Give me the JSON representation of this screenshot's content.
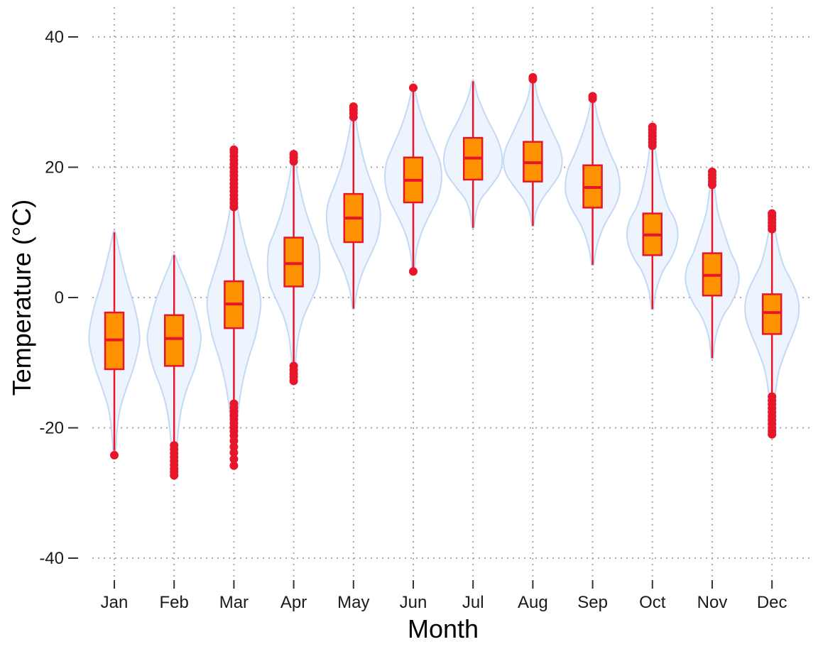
{
  "chart_data": {
    "type": "violin+box",
    "title": "",
    "xlabel": "Month",
    "ylabel": "Temperature (°C)",
    "ylim": [
      -43,
      44
    ],
    "yticks": [
      -40,
      -20,
      0,
      20,
      40
    ],
    "ytick_labels": [
      "-40",
      "-20",
      "0",
      "20",
      "40"
    ],
    "grid": "dotted, major x and y",
    "legend": "none",
    "colors": {
      "violin_fill": "#eef4fd",
      "violin_stroke": "#c3d9f5",
      "box_fill": "#ff9200",
      "box_stroke": "#e8162a",
      "whisker": "#e8162a",
      "outlier": "#e8162a",
      "grid": "#aaaaaa",
      "tick": "#333333"
    },
    "categories": [
      "Jan",
      "Feb",
      "Mar",
      "Apr",
      "May",
      "Jun",
      "Jul",
      "Aug",
      "Sep",
      "Oct",
      "Nov",
      "Dec"
    ],
    "boxes": [
      {
        "month": "Jan",
        "whisker_low": -23.5,
        "q1": -11,
        "median": -6.5,
        "q3": -2.3,
        "whisker_high": 10,
        "outliers": [
          -24.2
        ]
      },
      {
        "month": "Feb",
        "whisker_low": -22.5,
        "q1": -10.5,
        "median": -6.3,
        "q3": -2.7,
        "whisker_high": 6.5,
        "outliers": [
          -22.7,
          -23.3,
          -23.9,
          -24.5,
          -25.1,
          -25.7,
          -26.3,
          -26.8,
          -27.3
        ]
      },
      {
        "month": "Mar",
        "whisker_low": -16,
        "q1": -4.7,
        "median": -1,
        "q3": 2.5,
        "whisker_high": 13.5,
        "outliers": [
          -16.3,
          -16.9,
          -17.5,
          -18.1,
          -18.7,
          -19.3,
          -19.9,
          -20.5,
          -21.2,
          -22,
          -22.9,
          -23.8,
          -24.8,
          -25.8,
          13.9,
          14.5,
          15.1,
          15.7,
          16.3,
          16.9,
          17.5,
          18.1,
          18.7,
          19.3,
          19.9,
          20.5,
          21.1,
          21.7,
          22.3,
          22.7
        ]
      },
      {
        "month": "Apr",
        "whisker_low": -10,
        "q1": 1.7,
        "median": 5.2,
        "q3": 9.2,
        "whisker_high": 20.5,
        "outliers": [
          -10.5,
          -11.1,
          -11.7,
          -12.2,
          -12.8,
          20.9,
          21.5,
          22.0
        ]
      },
      {
        "month": "May",
        "whisker_low": -1.7,
        "q1": 8.5,
        "median": 12.2,
        "q3": 15.9,
        "whisker_high": 27.3,
        "outliers": [
          27.7,
          28.3,
          28.8,
          29.3
        ]
      },
      {
        "month": "Jun",
        "whisker_low": 4.5,
        "q1": 14.6,
        "median": 18,
        "q3": 21.5,
        "whisker_high": 31.8,
        "outliers": [
          4.0,
          32.2
        ]
      },
      {
        "month": "Jul",
        "whisker_low": 10.7,
        "q1": 18.1,
        "median": 21.4,
        "q3": 24.5,
        "whisker_high": 33.2,
        "outliers": []
      },
      {
        "month": "Aug",
        "whisker_low": 11,
        "q1": 17.8,
        "median": 20.7,
        "q3": 23.9,
        "whisker_high": 33.3,
        "outliers": [
          33.5,
          33.8
        ]
      },
      {
        "month": "Sep",
        "whisker_low": 5,
        "q1": 13.8,
        "median": 16.9,
        "q3": 20.3,
        "whisker_high": 30.3,
        "outliers": [
          30.5,
          30.9
        ]
      },
      {
        "month": "Oct",
        "whisker_low": -1.8,
        "q1": 6.5,
        "median": 9.6,
        "q3": 12.9,
        "whisker_high": 23,
        "outliers": [
          23.3,
          23.8,
          24.3,
          24.8,
          25.3,
          25.8,
          26.2
        ]
      },
      {
        "month": "Nov",
        "whisker_low": -9.3,
        "q1": 0.3,
        "median": 3.4,
        "q3": 6.8,
        "whisker_high": 17,
        "outliers": [
          17.3,
          17.8,
          18.3,
          18.8,
          19.3
        ]
      },
      {
        "month": "Dec",
        "whisker_low": -14.8,
        "q1": -5.6,
        "median": -2.3,
        "q3": 0.5,
        "whisker_high": 10.2,
        "outliers": [
          -15.2,
          -15.8,
          -16.4,
          -17,
          -17.6,
          -18.2,
          -18.8,
          -19.4,
          -20,
          -20.5,
          -21,
          10.5,
          11,
          11.5,
          12,
          12.5,
          12.9
        ]
      }
    ],
    "violins": [
      {
        "month": "Jan",
        "y_low": -24.2,
        "y_high": 10,
        "profile": [
          [
            -24.2,
            0.03
          ],
          [
            -20,
            0.1
          ],
          [
            -17,
            0.2
          ],
          [
            -14,
            0.4
          ],
          [
            -11,
            0.63
          ],
          [
            -8,
            0.8
          ],
          [
            -6.5,
            0.85
          ],
          [
            -4,
            0.8
          ],
          [
            -1,
            0.65
          ],
          [
            2,
            0.45
          ],
          [
            5,
            0.28
          ],
          [
            7.5,
            0.15
          ],
          [
            10,
            0.03
          ]
        ]
      },
      {
        "month": "Feb",
        "y_low": -27.3,
        "y_high": 6.5,
        "profile": [
          [
            -27.3,
            0.03
          ],
          [
            -24,
            0.07
          ],
          [
            -20,
            0.15
          ],
          [
            -17,
            0.25
          ],
          [
            -14,
            0.43
          ],
          [
            -11,
            0.68
          ],
          [
            -8,
            0.85
          ],
          [
            -6,
            0.9
          ],
          [
            -4,
            0.82
          ],
          [
            -1,
            0.65
          ],
          [
            1,
            0.5
          ],
          [
            3,
            0.33
          ],
          [
            5,
            0.15
          ],
          [
            6.5,
            0.03
          ]
        ]
      },
      {
        "month": "Mar",
        "y_low": -25.8,
        "y_high": 22.7,
        "profile": [
          [
            -25.8,
            0.03
          ],
          [
            -22,
            0.07
          ],
          [
            -18,
            0.13
          ],
          [
            -14,
            0.25
          ],
          [
            -10,
            0.45
          ],
          [
            -6,
            0.72
          ],
          [
            -3,
            0.85
          ],
          [
            -1,
            0.9
          ],
          [
            1,
            0.85
          ],
          [
            4,
            0.65
          ],
          [
            7,
            0.45
          ],
          [
            10,
            0.28
          ],
          [
            13,
            0.15
          ],
          [
            16,
            0.09
          ],
          [
            19,
            0.05
          ],
          [
            22.7,
            0.02
          ]
        ]
      },
      {
        "month": "Apr",
        "y_low": -12.8,
        "y_high": 22,
        "profile": [
          [
            -12.8,
            0.03
          ],
          [
            -9,
            0.08
          ],
          [
            -6,
            0.16
          ],
          [
            -3,
            0.33
          ],
          [
            0,
            0.62
          ],
          [
            2,
            0.8
          ],
          [
            4,
            0.87
          ],
          [
            6,
            0.87
          ],
          [
            8,
            0.82
          ],
          [
            10,
            0.65
          ],
          [
            13,
            0.42
          ],
          [
            16,
            0.25
          ],
          [
            19,
            0.12
          ],
          [
            22,
            0.03
          ]
        ]
      },
      {
        "month": "May",
        "y_low": -1.7,
        "y_high": 29.3,
        "profile": [
          [
            -1.7,
            0.03
          ],
          [
            1,
            0.12
          ],
          [
            4,
            0.32
          ],
          [
            7,
            0.62
          ],
          [
            9,
            0.8
          ],
          [
            11,
            0.88
          ],
          [
            13,
            0.9
          ],
          [
            15,
            0.82
          ],
          [
            17,
            0.65
          ],
          [
            20,
            0.42
          ],
          [
            23,
            0.25
          ],
          [
            26,
            0.12
          ],
          [
            29.3,
            0.03
          ]
        ]
      },
      {
        "month": "Jun",
        "y_low": 4,
        "y_high": 32.2,
        "profile": [
          [
            4,
            0.03
          ],
          [
            7,
            0.1
          ],
          [
            10,
            0.28
          ],
          [
            13,
            0.58
          ],
          [
            15,
            0.8
          ],
          [
            17,
            0.92
          ],
          [
            19,
            0.95
          ],
          [
            21,
            0.88
          ],
          [
            23,
            0.7
          ],
          [
            26,
            0.42
          ],
          [
            29,
            0.2
          ],
          [
            32.2,
            0.03
          ]
        ]
      },
      {
        "month": "Jul",
        "y_low": 10.7,
        "y_high": 33.2,
        "profile": [
          [
            10.7,
            0.03
          ],
          [
            13,
            0.1
          ],
          [
            15,
            0.25
          ],
          [
            17,
            0.58
          ],
          [
            19,
            0.88
          ],
          [
            21,
            0.98
          ],
          [
            23,
            0.92
          ],
          [
            25,
            0.75
          ],
          [
            27,
            0.52
          ],
          [
            29,
            0.32
          ],
          [
            31,
            0.15
          ],
          [
            33.2,
            0.03
          ]
        ]
      },
      {
        "month": "Aug",
        "y_low": 11,
        "y_high": 33.8,
        "profile": [
          [
            11,
            0.03
          ],
          [
            13,
            0.1
          ],
          [
            15,
            0.3
          ],
          [
            17,
            0.62
          ],
          [
            19,
            0.9
          ],
          [
            21,
            0.98
          ],
          [
            23,
            0.9
          ],
          [
            25,
            0.7
          ],
          [
            27,
            0.5
          ],
          [
            29,
            0.3
          ],
          [
            31,
            0.15
          ],
          [
            33.8,
            0.03
          ]
        ]
      },
      {
        "month": "Sep",
        "y_low": 5,
        "y_high": 30.9,
        "profile": [
          [
            5,
            0.03
          ],
          [
            8,
            0.15
          ],
          [
            11,
            0.38
          ],
          [
            14,
            0.75
          ],
          [
            16,
            0.9
          ],
          [
            18,
            0.9
          ],
          [
            20,
            0.8
          ],
          [
            22,
            0.6
          ],
          [
            25,
            0.35
          ],
          [
            28,
            0.15
          ],
          [
            30.9,
            0.03
          ]
        ]
      },
      {
        "month": "Oct",
        "y_low": -1.8,
        "y_high": 26.2,
        "profile": [
          [
            -1.8,
            0.03
          ],
          [
            1,
            0.12
          ],
          [
            4,
            0.35
          ],
          [
            6,
            0.62
          ],
          [
            8,
            0.8
          ],
          [
            10,
            0.85
          ],
          [
            12,
            0.75
          ],
          [
            14,
            0.52
          ],
          [
            17,
            0.32
          ],
          [
            20,
            0.18
          ],
          [
            23,
            0.09
          ],
          [
            26.2,
            0.02
          ]
        ]
      },
      {
        "month": "Nov",
        "y_low": -9.3,
        "y_high": 19.3,
        "profile": [
          [
            -9.3,
            0.03
          ],
          [
            -6,
            0.12
          ],
          [
            -3,
            0.35
          ],
          [
            -1,
            0.62
          ],
          [
            1,
            0.82
          ],
          [
            3,
            0.9
          ],
          [
            5,
            0.82
          ],
          [
            7,
            0.62
          ],
          [
            10,
            0.4
          ],
          [
            13,
            0.2
          ],
          [
            16,
            0.1
          ],
          [
            19.3,
            0.02
          ]
        ]
      },
      {
        "month": "Dec",
        "y_low": -21,
        "y_high": 12.9,
        "profile": [
          [
            -21,
            0.02
          ],
          [
            -17,
            0.06
          ],
          [
            -14,
            0.13
          ],
          [
            -11,
            0.25
          ],
          [
            -8,
            0.48
          ],
          [
            -5,
            0.75
          ],
          [
            -3,
            0.88
          ],
          [
            -1,
            0.9
          ],
          [
            1,
            0.8
          ],
          [
            3,
            0.6
          ],
          [
            5,
            0.38
          ],
          [
            8,
            0.2
          ],
          [
            11,
            0.08
          ],
          [
            12.9,
            0.02
          ]
        ]
      }
    ]
  }
}
